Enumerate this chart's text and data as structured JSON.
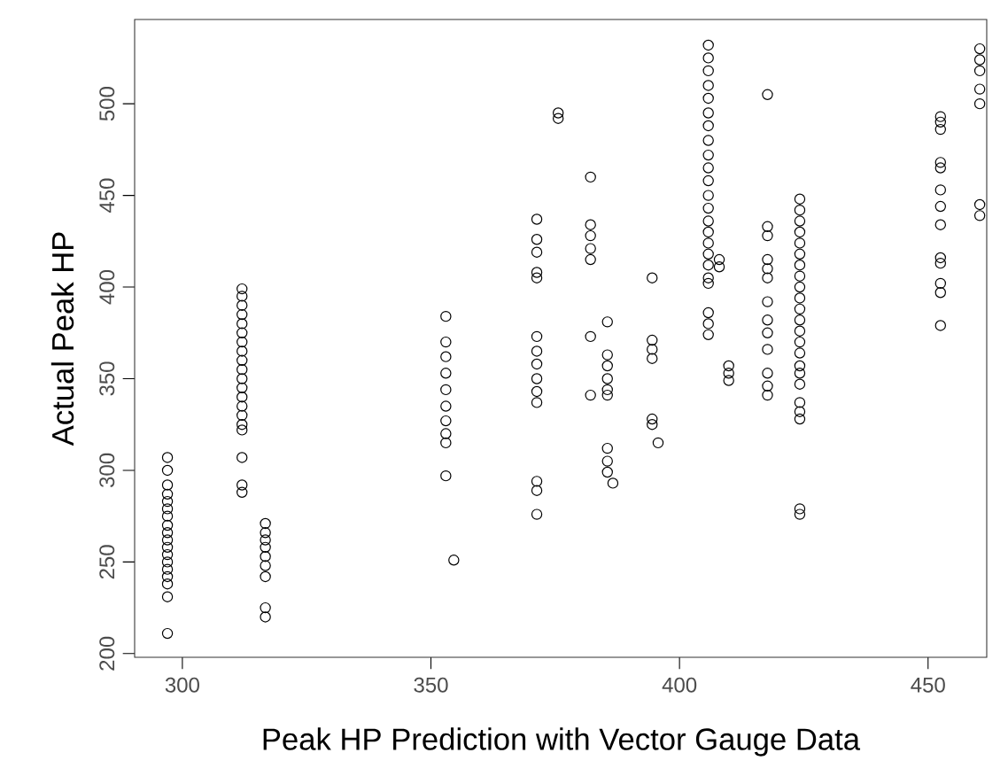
{
  "chart_data": {
    "type": "scatter",
    "xlabel": "Peak HP Prediction with Vector Gauge Data",
    "ylabel": "Actual Peak HP",
    "xlim": [
      290.4,
      461.8
    ],
    "ylim": [
      198,
      546
    ],
    "xticks": [
      300,
      350,
      400,
      450
    ],
    "yticks": [
      200,
      250,
      300,
      350,
      400,
      450,
      500
    ],
    "marker": "circle",
    "series": [
      {
        "color": "#000000",
        "x": [
          297,
          297,
          297,
          297,
          297,
          297,
          297,
          297,
          297,
          297,
          297,
          297,
          297,
          297,
          297,
          297,
          297,
          297,
          312,
          312,
          312,
          312,
          312,
          312,
          312,
          312,
          312,
          312,
          312,
          312,
          312,
          312,
          312,
          312,
          312,
          312,
          312,
          312,
          316.7,
          316.7,
          316.7,
          316.7,
          316.7,
          316.7,
          316.7,
          316.7,
          316.7,
          353,
          353,
          353,
          353,
          353,
          353,
          353,
          353,
          353,
          353,
          354.6,
          371.3,
          371.3,
          371.3,
          371.3,
          371.3,
          371.3,
          371.3,
          371.3,
          371.3,
          371.3,
          371.3,
          371.3,
          371.3,
          371.3,
          375.6,
          375.6,
          382.1,
          382.1,
          382.1,
          382.1,
          382.1,
          382.1,
          382.1,
          385.5,
          385.5,
          385.5,
          385.5,
          385.5,
          385.5,
          385.5,
          385.5,
          385.5,
          386.6,
          394.5,
          394.5,
          394.5,
          394.5,
          394.5,
          394.5,
          395.7,
          405.8,
          405.8,
          405.8,
          405.8,
          405.8,
          405.8,
          405.8,
          405.8,
          405.8,
          405.8,
          405.8,
          405.8,
          405.8,
          405.8,
          405.8,
          405.8,
          405.8,
          405.8,
          405.8,
          405.8,
          405.8,
          405.8,
          405.8,
          408,
          408,
          409.9,
          409.9,
          409.9,
          417.7,
          417.7,
          417.7,
          417.7,
          417.7,
          417.7,
          417.7,
          417.7,
          417.7,
          417.7,
          417.7,
          417.7,
          417.7,
          424.2,
          424.2,
          424.2,
          424.2,
          424.2,
          424.2,
          424.2,
          424.2,
          424.2,
          424.2,
          424.2,
          424.2,
          424.2,
          424.2,
          424.2,
          424.2,
          424.2,
          424.2,
          424.2,
          424.2,
          424.2,
          424.2,
          424.2,
          452.5,
          452.5,
          452.5,
          452.5,
          452.5,
          452.5,
          452.5,
          452.5,
          452.5,
          452.5,
          452.5,
          452.5,
          452.5,
          460.4,
          460.4,
          460.4,
          460.4,
          460.4,
          460.4,
          460.4
        ],
        "values": [
          307,
          300,
          292,
          287,
          283,
          279,
          275,
          270,
          266,
          262,
          258,
          254,
          250,
          246,
          242,
          238,
          231,
          211,
          399,
          395,
          390,
          385,
          380,
          375,
          370,
          365,
          360,
          355,
          350,
          345,
          340,
          335,
          330,
          325,
          322,
          307,
          292,
          288,
          271,
          266,
          262,
          258,
          253,
          248,
          242,
          225,
          220,
          384,
          370,
          362,
          353,
          344,
          335,
          327,
          320,
          315,
          297,
          251,
          437,
          426,
          419,
          408,
          405,
          373,
          365,
          358,
          350,
          343,
          337,
          294,
          289,
          276,
          495,
          492,
          460,
          434,
          428,
          421,
          415,
          373,
          341,
          381,
          363,
          357,
          350,
          344,
          341,
          312,
          305,
          299,
          293,
          405,
          371,
          366,
          361,
          328,
          325,
          315,
          532,
          525,
          518,
          510,
          503,
          495,
          488,
          480,
          472,
          465,
          458,
          450,
          443,
          436,
          430,
          424,
          418,
          412,
          405,
          402,
          386,
          380,
          374,
          415,
          411,
          357,
          353,
          349,
          505,
          433,
          428,
          415,
          410,
          405,
          392,
          382,
          375,
          366,
          353,
          346,
          341,
          448,
          442,
          436,
          430,
          424,
          418,
          412,
          406,
          400,
          394,
          388,
          382,
          376,
          370,
          364,
          357,
          353,
          347,
          337,
          332,
          328,
          279,
          276,
          493,
          490,
          486,
          468,
          465,
          453,
          444,
          434,
          416,
          413,
          402,
          397,
          379,
          530,
          524,
          518,
          508,
          500,
          445,
          439
        ]
      }
    ]
  }
}
